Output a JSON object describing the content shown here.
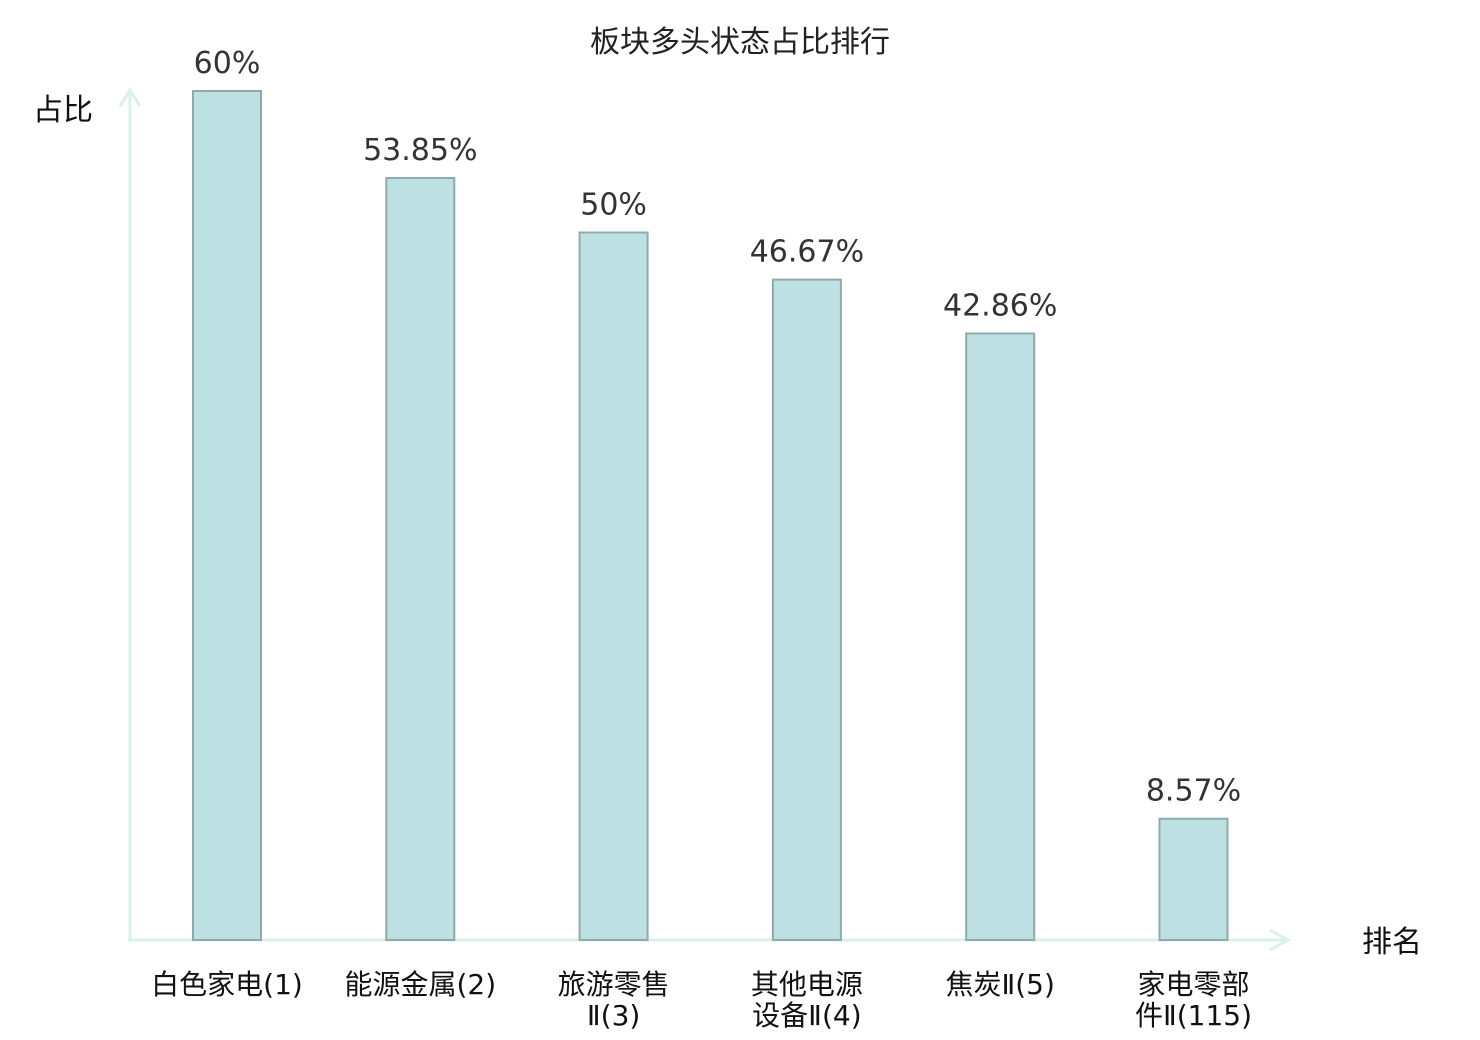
{
  "chart_data": {
    "type": "bar",
    "title": "板块多头状态占比排行",
    "ylabel": "占比",
    "xlabel": "排名",
    "ylim": [
      0,
      60
    ],
    "categories": [
      [
        "白色家电(1)"
      ],
      [
        "能源金属(2)"
      ],
      [
        "旅游零售",
        "Ⅱ(3)"
      ],
      [
        "其他电源",
        "设备Ⅱ(4)"
      ],
      [
        "焦炭Ⅱ(5)"
      ],
      [
        "家电零部",
        "件Ⅱ(115)"
      ]
    ],
    "values": [
      60,
      53.85,
      50,
      46.67,
      42.86,
      8.57
    ],
    "value_labels": [
      "60%",
      "53.85%",
      "50%",
      "46.67%",
      "42.86%",
      "8.57%"
    ],
    "highlight_index": 5,
    "colors": {
      "bar_fill": "#bde1e3",
      "bar_stroke": "#8faaad",
      "axis": "#d9f0ec",
      "highlight_text": "#e3161c",
      "text": "#111111"
    }
  }
}
